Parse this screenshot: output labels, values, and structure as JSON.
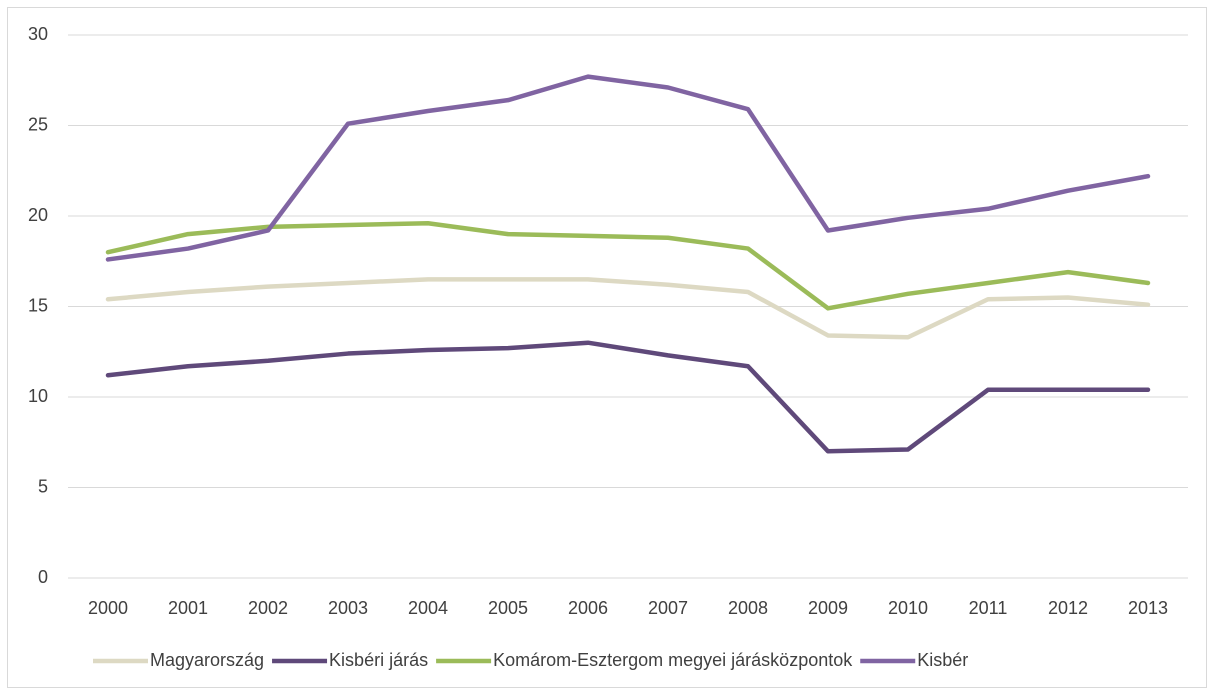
{
  "chart_data": {
    "type": "line",
    "categories": [
      "2000",
      "2001",
      "2002",
      "2003",
      "2004",
      "2005",
      "2006",
      "2007",
      "2008",
      "2009",
      "2010",
      "2011",
      "2012",
      "2013"
    ],
    "series": [
      {
        "name": "Magyarország",
        "color": "#ddd9c3",
        "values": [
          15.4,
          15.8,
          16.1,
          16.3,
          16.5,
          16.5,
          16.5,
          16.2,
          15.8,
          13.4,
          13.3,
          15.4,
          15.5,
          15.1
        ]
      },
      {
        "name": "Kisbéri járás",
        "color": "#5f497a",
        "values": [
          11.2,
          11.7,
          12.0,
          12.4,
          12.6,
          12.7,
          13.0,
          12.3,
          11.7,
          7.0,
          7.1,
          10.4,
          10.4,
          10.4
        ]
      },
      {
        "name": "Komárom-Esztergom megyei járásközpontok",
        "color": "#9bbb59",
        "values": [
          18.0,
          19.0,
          19.4,
          19.5,
          19.6,
          19.0,
          18.9,
          18.8,
          18.2,
          14.9,
          15.7,
          16.3,
          16.9,
          16.3
        ]
      },
      {
        "name": "Kisbér",
        "color": "#8064a2",
        "values": [
          17.6,
          18.2,
          19.2,
          25.1,
          25.8,
          26.4,
          27.7,
          27.1,
          25.9,
          19.2,
          19.9,
          20.4,
          21.4,
          22.2
        ]
      }
    ],
    "ylim": [
      0,
      30
    ],
    "yticks": [
      0,
      5,
      10,
      15,
      20,
      25,
      30
    ],
    "grid": true,
    "legend": "bottom"
  }
}
